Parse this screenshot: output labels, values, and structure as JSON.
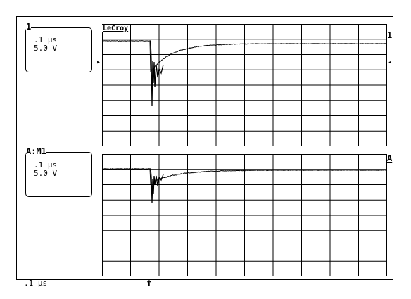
{
  "channel1": {
    "tag": "1",
    "timebase": ".1 µs",
    "volts": "5.0 V",
    "brand": "LeCroy",
    "trace_label": "1",
    "left_marker": "▸",
    "right_marker": "◂"
  },
  "channelA": {
    "tag": "A:M1",
    "timebase": ".1 µs",
    "volts": "5.0 V",
    "trace_label": "A"
  },
  "footer": {
    "timebase": ".1 µs",
    "trigger_marker": "↑"
  },
  "grid": {
    "columns": 10,
    "rows": 8
  },
  "colors": {
    "trace": "#000000",
    "grid": "#000000",
    "background": "#ffffff"
  }
}
